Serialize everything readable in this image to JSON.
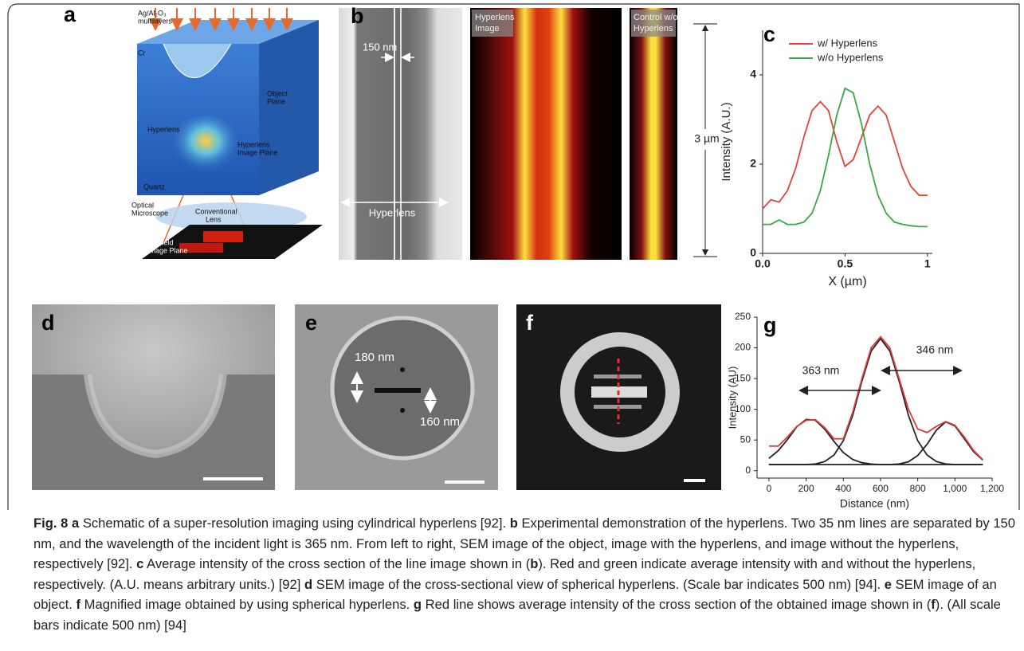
{
  "panels": {
    "a": {
      "label": "a",
      "multilayers": [
        "Ag/Al₂O₃",
        "multilayers"
      ],
      "cr": "Cr",
      "hyperlens": "Hyperlens",
      "object_plane": [
        "Object",
        "Plane"
      ],
      "image_plane": [
        "Hyperlens",
        "Image Plane"
      ],
      "quartz": "Quartz",
      "microscope": [
        "Optical",
        "Microscope"
      ],
      "lens": [
        "Conventional",
        "Lens"
      ],
      "far_field": [
        "Far field",
        "Image Plane"
      ]
    },
    "b": {
      "label": "b",
      "gap": "150 nm",
      "hyperlens": "Hyperlens",
      "image": [
        "Hyperlens",
        "Image"
      ],
      "control": [
        "Control w/o",
        "Hyperlens"
      ],
      "scale": "3 µm"
    },
    "d": {
      "label": "d"
    },
    "e": {
      "label": "e",
      "upper": "180 nm",
      "lower": "160 nm"
    },
    "f": {
      "label": "f"
    }
  },
  "chart_data": [
    {
      "type": "line",
      "title": "c",
      "xlabel": "X (µm)",
      "ylabel": "Intensity (A.U.)",
      "legend": "top-left",
      "x": [
        0,
        0.05,
        0.1,
        0.15,
        0.2,
        0.25,
        0.3,
        0.35,
        0.4,
        0.45,
        0.5,
        0.55,
        0.6,
        0.65,
        0.7,
        0.75,
        0.8,
        0.85,
        0.9,
        0.95,
        1.0
      ],
      "series": [
        {
          "name": "w/ Hyperlens",
          "color": "#e8403a",
          "values": [
            1.0,
            1.2,
            1.15,
            1.4,
            1.9,
            2.6,
            3.2,
            3.4,
            3.2,
            2.5,
            1.95,
            2.1,
            2.6,
            3.1,
            3.3,
            3.1,
            2.5,
            1.9,
            1.5,
            1.3,
            1.3
          ]
        },
        {
          "name": "w/o Hyperlens",
          "color": "#3aa845",
          "values": [
            0.65,
            0.65,
            0.75,
            0.65,
            0.65,
            0.7,
            0.9,
            1.4,
            2.2,
            3.1,
            3.7,
            3.6,
            2.9,
            2.0,
            1.3,
            0.9,
            0.7,
            0.65,
            0.62,
            0.6,
            0.6
          ]
        }
      ],
      "xlim": [
        0,
        1.03
      ],
      "ylim": [
        0,
        5
      ],
      "xticks": [
        {
          "value": 0,
          "label": "0.0"
        },
        0.5,
        1
      ],
      "yticks": [
        0,
        2,
        4
      ]
    },
    {
      "type": "line",
      "title": "g",
      "xlabel": "Distance (nm)",
      "ylabel": "Intensity (AU)",
      "annotations": [
        "363 nm",
        "346 nm"
      ],
      "x": [
        0,
        50,
        100,
        150,
        200,
        250,
        300,
        350,
        400,
        450,
        500,
        550,
        600,
        650,
        700,
        750,
        800,
        850,
        900,
        950,
        1000,
        1050,
        1100,
        1150
      ],
      "series": [
        {
          "color": "#222222",
          "values": [
            20,
            32.6,
            51,
            71.5,
            83.5,
            82,
            67.7,
            47.5,
            29.5,
            18.4,
            13,
            10.8,
            10,
            10,
            10,
            10,
            10,
            10,
            10,
            10,
            10,
            10,
            10,
            10
          ]
        },
        {
          "color": "#222222",
          "values": [
            10,
            10,
            10,
            10,
            10,
            11,
            15,
            25.6,
            49,
            90,
            146,
            195,
            215,
            195,
            146,
            90,
            49,
            25.6,
            15,
            11,
            10,
            10,
            10,
            10
          ]
        },
        {
          "color": "#222222",
          "values": [
            10,
            10,
            10,
            10,
            10,
            10,
            10,
            10,
            10,
            10,
            10,
            10,
            10,
            10,
            11,
            14.6,
            24.7,
            43,
            66,
            79.6,
            73,
            52.5,
            31,
            17.5
          ]
        },
        {
          "color": "#e03a3a",
          "values": [
            40,
            40,
            55,
            72,
            82,
            83,
            70,
            52,
            52,
            95,
            150,
            200,
            218,
            200,
            150,
            100,
            68,
            62,
            72,
            80,
            74,
            55,
            33,
            18
          ]
        }
      ],
      "xlim": [
        -64,
        1200
      ],
      "ylim": [
        -12,
        250
      ],
      "xticks": [
        0,
        200,
        400,
        600,
        800,
        {
          "value": 1000,
          "label": "1,000"
        },
        {
          "value": 1200,
          "label": "1,200"
        }
      ],
      "yticks": [
        0,
        50,
        100,
        150,
        200,
        250
      ]
    }
  ],
  "caption": {
    "segments": [
      {
        "text": "Fig. 8",
        "bold": true
      },
      {
        "text": " "
      },
      {
        "text": "a",
        "bold": true
      },
      {
        "text": " Schematic of a super-resolution imaging using cylindrical hyperlens [92]. "
      },
      {
        "text": "b",
        "bold": true
      },
      {
        "text": " Experimental demonstration of the hyperlens. Two 35 nm lines are separated by 150 nm, and the wavelength of the incident light is 365 nm. From left to right, SEM image of the object, image with the hyperlens, and image without the hyperlens, respectively [92]. "
      },
      {
        "text": "c",
        "bold": true
      },
      {
        "text": " Average intensity of the cross section of the line image shown in ("
      },
      {
        "text": "b",
        "bold": true
      },
      {
        "text": "). Red and green indicate average intensity with and without the hyperlens, respectively. (A.U. means arbitrary units.) [92] "
      },
      {
        "text": "d",
        "bold": true
      },
      {
        "text": " SEM image of the cross-sectional view of spherical hyperlens. (Scale bar indicates 500 nm) [94]. "
      },
      {
        "text": "e",
        "bold": true
      },
      {
        "text": " SEM image of an object. "
      },
      {
        "text": "f",
        "bold": true
      },
      {
        "text": " Magnified image obtained by using spherical hyperlens. "
      },
      {
        "text": "g",
        "bold": true
      },
      {
        "text": " Red line shows average intensity of the cross section of the obtained image shown in ("
      },
      {
        "text": "f",
        "bold": true
      },
      {
        "text": "). (All scale bars indicate 500 nm) [94]"
      }
    ]
  }
}
